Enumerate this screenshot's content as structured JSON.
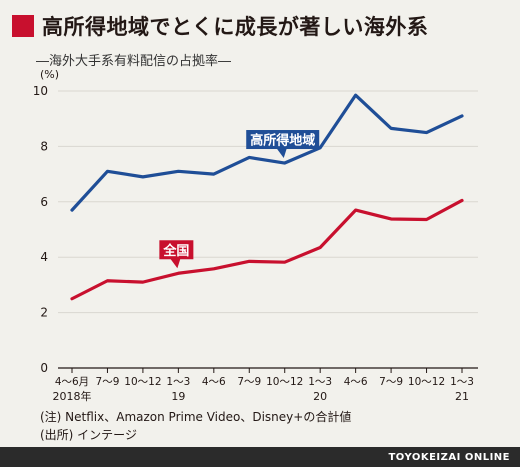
{
  "title": "高所得地域でとくに成長が著しい海外系",
  "subtitle": "―海外大手系有料配信の占拠率―",
  "unit_label": "(%)",
  "notes": [
    "(注) Netflix、Amazon Prime Video、Disney+の合計値",
    "(出所) インテージ"
  ],
  "credit": "TOYOKEIZAI ONLINE",
  "colors": {
    "high_income": "#1f4e97",
    "national": "#c8102e",
    "accent": "#c8102e"
  },
  "chart_data": {
    "type": "line",
    "title": "高所得地域でとくに成長が著しい海外系",
    "subtitle": "―海外大手系有料配信の占拠率―",
    "ylabel": "(%)",
    "ylim": [
      0,
      10
    ],
    "yticks": [
      0,
      2,
      4,
      6,
      8,
      10
    ],
    "grid": true,
    "categories": [
      "4～6月",
      "7～9",
      "10～12",
      "1～3",
      "4～6",
      "7～9",
      "10～12",
      "1～3",
      "4～6",
      "7～9",
      "10～12",
      "1～3"
    ],
    "year_labels": [
      {
        "index": 0,
        "label": "2018年"
      },
      {
        "index": 3,
        "label": "19"
      },
      {
        "index": 7,
        "label": "20"
      },
      {
        "index": 11,
        "label": "21"
      }
    ],
    "series": [
      {
        "name": "高所得地域",
        "color": "#1f4e97",
        "label_index": 6,
        "values": [
          5.7,
          7.1,
          6.9,
          7.1,
          7.0,
          7.6,
          7.4,
          7.95,
          9.85,
          8.65,
          8.5,
          9.1
        ]
      },
      {
        "name": "全国",
        "color": "#c8102e",
        "label_index": 3,
        "values": [
          2.5,
          3.15,
          3.1,
          3.42,
          3.58,
          3.85,
          3.82,
          4.35,
          5.7,
          5.38,
          5.36,
          6.05
        ]
      }
    ]
  }
}
